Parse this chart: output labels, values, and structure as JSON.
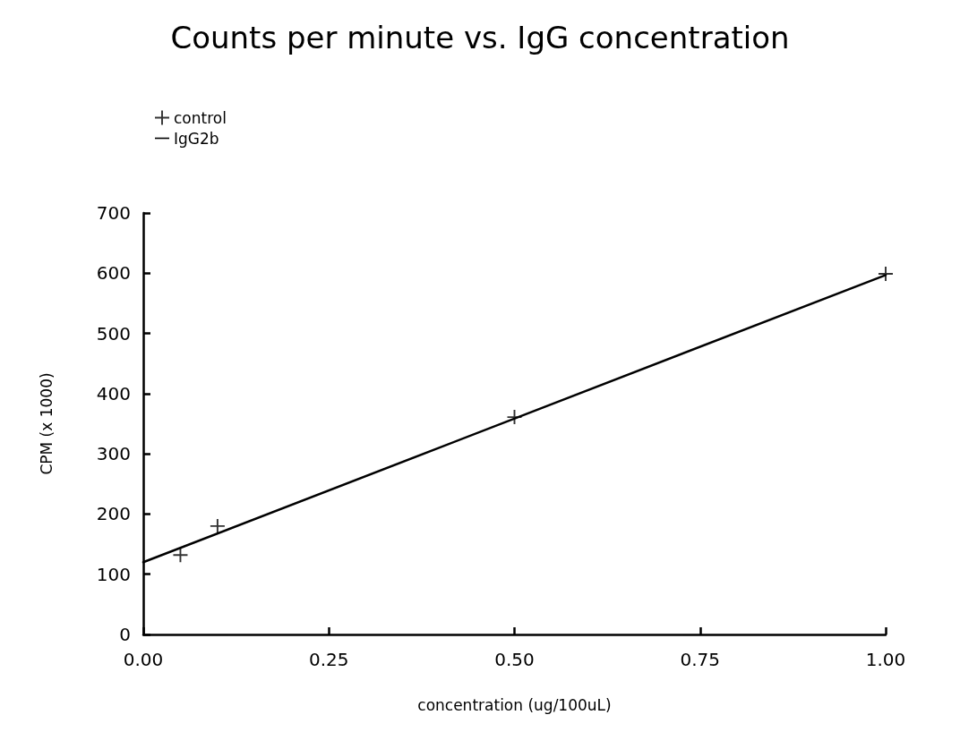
{
  "chart_data": {
    "type": "scatter",
    "title": "Counts per minute vs. IgG concentration",
    "xlabel": "concentration (ug/100uL)",
    "ylabel": "CPM (x 1000)",
    "x": [
      0.05,
      0.1,
      0.5,
      1.0
    ],
    "series": [
      {
        "name": "control",
        "color": "#000000",
        "marker": "cross",
        "values": [
          132,
          180,
          361,
          599
        ]
      },
      {
        "name": "IgG2b",
        "type": "line",
        "color": "#000000",
        "marker": "none",
        "line_style": "solid",
        "x": [
          0,
          1
        ],
        "values": [
          120,
          597
        ]
      }
    ],
    "xlim": [
      0,
      1
    ],
    "xticks": [
      {
        "value": 0,
        "label": "0.00"
      },
      {
        "value": 0.25,
        "label": "0.25"
      },
      {
        "value": 0.5,
        "label": "0.50"
      },
      {
        "value": 0.75,
        "label": "0.75"
      },
      {
        "value": 1,
        "label": "1.00"
      }
    ],
    "ylim": [
      0,
      700
    ],
    "yticks": [
      0,
      100,
      200,
      300,
      400,
      500,
      600,
      700
    ],
    "grid": false,
    "legend": "top left"
  }
}
